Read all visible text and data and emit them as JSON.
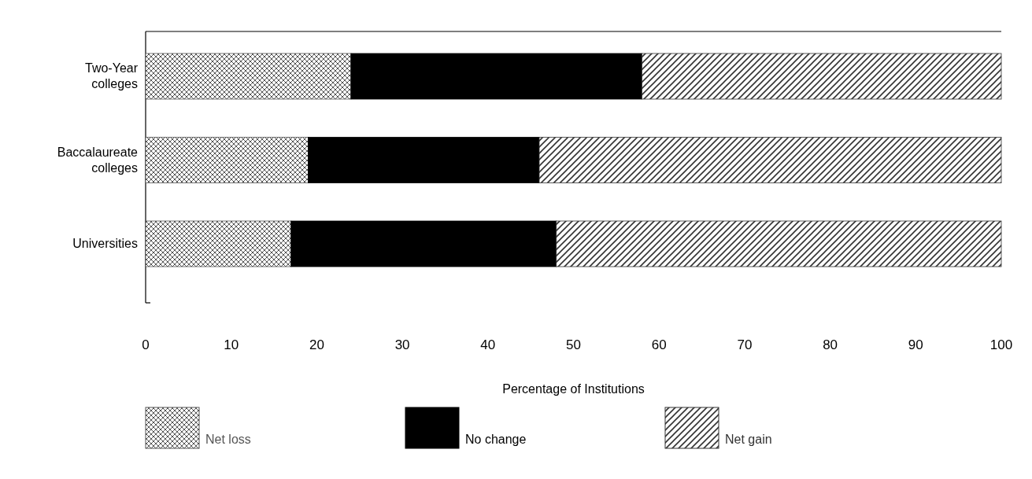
{
  "chart_data": {
    "type": "bar",
    "orientation": "horizontal",
    "stacked": true,
    "xlabel": "Percentage of Institutions",
    "categories": [
      "Two-Year colleges",
      "Baccalaureate colleges",
      "Universities"
    ],
    "series": [
      {
        "name": "Net loss",
        "color": "#555555",
        "values": [
          24,
          19,
          17
        ]
      },
      {
        "name": "No change",
        "color": "#000000",
        "values": [
          34,
          27,
          31
        ]
      },
      {
        "name": "Net gain",
        "color": "#333333",
        "values": [
          42,
          54,
          52
        ]
      }
    ],
    "xlim": [
      0,
      100
    ],
    "xticks": [
      0,
      10,
      20,
      30,
      40,
      50,
      60,
      70,
      80,
      90,
      100
    ],
    "grid": false,
    "legend": "bottom"
  }
}
